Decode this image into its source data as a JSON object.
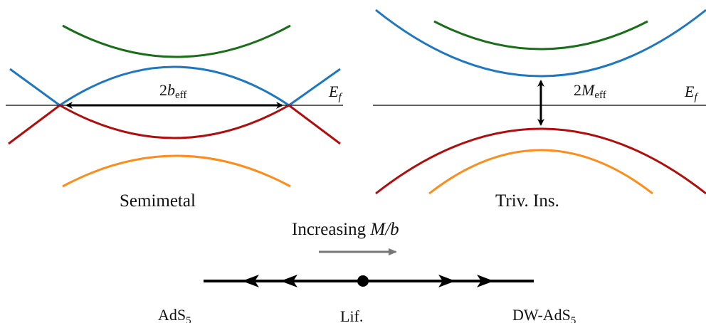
{
  "left_panel": {
    "caption": "Semimetal",
    "gap_label": {
      "main": "2",
      "var": "b",
      "sub": "eff"
    },
    "fermi_label": {
      "var": "E",
      "sub": "f"
    }
  },
  "right_panel": {
    "caption": "Triv. Ins.",
    "gap_label": {
      "main": "2",
      "var": "M",
      "sub": "eff"
    },
    "fermi_label": {
      "var": "E",
      "sub": "f"
    }
  },
  "arrow_label": {
    "text": "Increasing ",
    "math": "M/b"
  },
  "flow_labels": {
    "left": {
      "main": "AdS",
      "sub": "5"
    },
    "center": {
      "main": "Lif."
    },
    "right": {
      "main": "DW-AdS",
      "sub": "5"
    }
  },
  "colors": {
    "blue": "#1f77c0",
    "green": "#1a6e1a",
    "red": "#b00d0d",
    "orange": "#ff8c1a",
    "black": "#000000",
    "gray": "#777777"
  }
}
